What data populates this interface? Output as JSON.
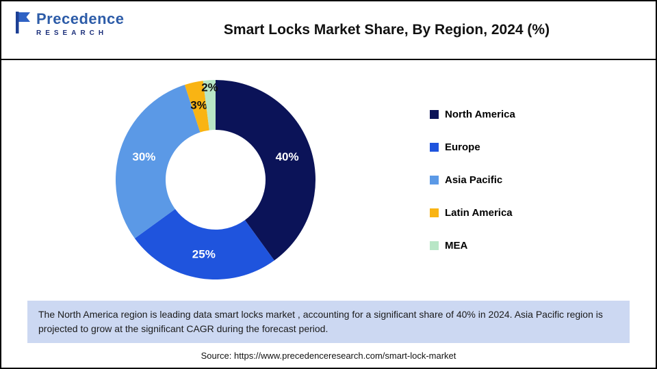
{
  "header": {
    "logo_name": "Precedence",
    "logo_sub": "RESEARCH",
    "title": "Smart Locks Market Share, By Region, 2024 (%)"
  },
  "chart_data": {
    "type": "pie",
    "donut": true,
    "title": "Smart Locks Market Share, By Region, 2024 (%)",
    "categories": [
      "North America",
      "Europe",
      "Asia Pacific",
      "Latin America",
      "MEA"
    ],
    "values": [
      40,
      25,
      30,
      3,
      2
    ],
    "labels": [
      "40%",
      "25%",
      "30%",
      "3%",
      "2%"
    ],
    "colors": [
      "#0b1358",
      "#1f54dd",
      "#5b99e6",
      "#f9b413",
      "#b8e6c6"
    ],
    "label_radii": [
      110,
      110,
      110,
      112,
      136
    ],
    "legend_position": "right",
    "start_angle_deg": 0,
    "direction": "clockwise"
  },
  "caption": {
    "text": "The North America region is leading data smart locks market , accounting for a significant share of 40% in 2024. Asia Pacific region is projected to grow at the significant CAGR during the forecast period."
  },
  "source": {
    "text": "Source: https://www.precedenceresearch.com/smart-lock-market"
  }
}
